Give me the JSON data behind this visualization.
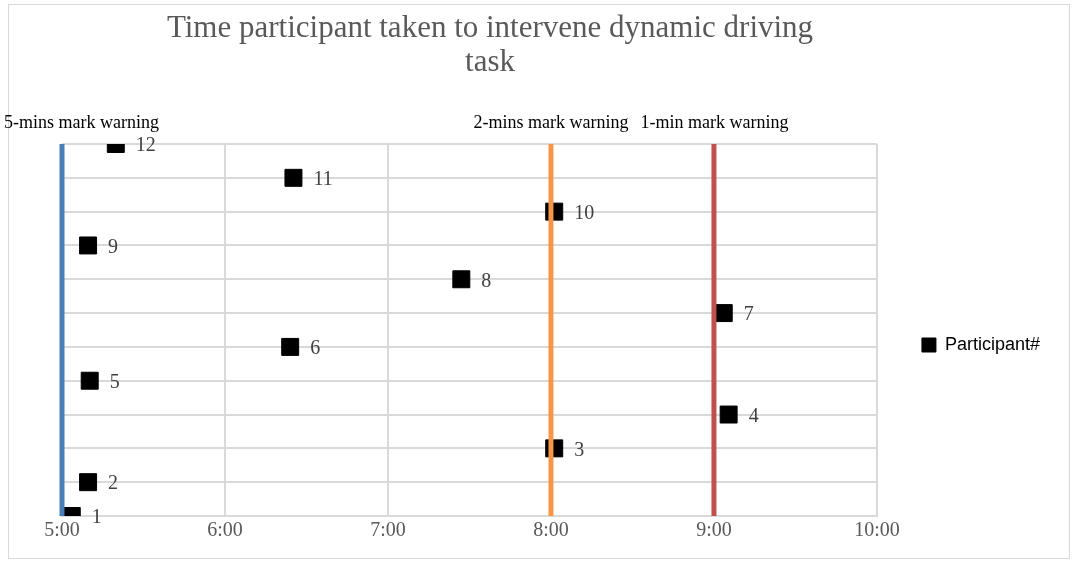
{
  "chart_data": {
    "type": "scatter",
    "title": "Time participant taken to intervene dynamic driving task",
    "x": [
      5.06,
      5.16,
      8.02,
      9.09,
      5.17,
      6.4,
      9.06,
      7.45,
      5.16,
      8.02,
      6.42,
      5.33
    ],
    "series": [
      {
        "name": "Participant#",
        "color": "#000000",
        "values": [
          1,
          2,
          3,
          4,
          5,
          6,
          7,
          8,
          9,
          10,
          11,
          12
        ]
      }
    ],
    "xlim": [
      5,
      10
    ],
    "xticks": [
      {
        "value": 5,
        "label": "5:00"
      },
      {
        "value": 6,
        "label": "6:00"
      },
      {
        "value": 7,
        "label": "7:00"
      },
      {
        "value": 8,
        "label": "8:00"
      },
      {
        "value": 9,
        "label": "9:00"
      },
      {
        "value": 10,
        "label": "10:00"
      }
    ],
    "ylim": [
      1,
      12
    ],
    "yticks": [
      {
        "value": 1,
        "label": null
      },
      {
        "value": 2,
        "label": null
      },
      {
        "value": 3,
        "label": null
      },
      {
        "value": 4,
        "label": null
      },
      {
        "value": 5,
        "label": null
      },
      {
        "value": 6,
        "label": null
      },
      {
        "value": 7,
        "label": null
      },
      {
        "value": 8,
        "label": null
      },
      {
        "value": 9,
        "label": null
      },
      {
        "value": 10,
        "label": null
      },
      {
        "value": 11,
        "label": null
      },
      {
        "value": 12,
        "label": null
      }
    ],
    "tick_labels": "x",
    "grid": true,
    "legend": "right",
    "marker": "square",
    "data_labels": true,
    "ref_lines": [
      {
        "axis": "x",
        "value": 5,
        "label": "5-mins mark warning",
        "color": "#4a7ebb"
      },
      {
        "axis": "x",
        "value": 8,
        "label": "2-mins mark warning",
        "color": "#f79646"
      },
      {
        "axis": "x",
        "value": 9,
        "label": "1-min mark warning",
        "color": "#c0504d"
      }
    ]
  }
}
